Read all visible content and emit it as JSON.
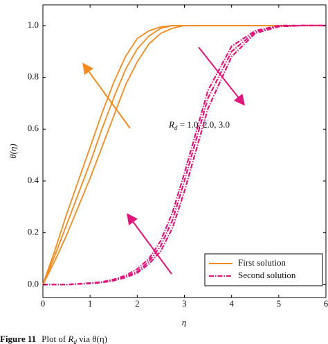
{
  "chart_data": {
    "type": "line",
    "x_label": "η",
    "y_label": "θ(η)",
    "x": [
      0,
      0.25,
      0.5,
      0.75,
      1,
      1.25,
      1.5,
      1.75,
      2,
      2.25,
      2.5,
      2.75,
      3,
      3.5,
      4,
      4.5,
      5,
      5.5,
      6
    ],
    "xlim": [
      0,
      6
    ],
    "ylim": [
      -0.05,
      1.08
    ],
    "xticks": [
      0,
      1,
      2,
      3,
      4,
      5,
      6
    ],
    "yticks": [
      {
        "value": 0,
        "label": "0.0"
      },
      {
        "value": 0.2,
        "label": "0.2"
      },
      {
        "value": 0.4,
        "label": "0.4"
      },
      {
        "value": 0.6,
        "label": "0.6"
      },
      {
        "value": 0.8,
        "label": "0.8"
      },
      {
        "value": 1,
        "label": "1.0"
      }
    ],
    "legend": "lower right",
    "series": [
      {
        "name": "First solution",
        "color": "#f28a1e",
        "style": "solid",
        "values": [
          0,
          0.13,
          0.27,
          0.4,
          0.53,
          0.66,
          0.78,
          0.88,
          0.95,
          0.98,
          0.995,
          1,
          1,
          1,
          1,
          1,
          1,
          1,
          1
        ]
      },
      {
        "name": "First solution",
        "color": "#f28a1e",
        "style": "solid",
        "values": [
          0,
          0.11,
          0.23,
          0.35,
          0.47,
          0.6,
          0.72,
          0.83,
          0.91,
          0.96,
          0.99,
          1,
          1,
          1,
          1,
          1,
          1,
          1,
          1
        ]
      },
      {
        "name": "First solution",
        "color": "#f28a1e",
        "style": "solid",
        "values": [
          0,
          0.09,
          0.19,
          0.3,
          0.41,
          0.53,
          0.65,
          0.77,
          0.86,
          0.93,
          0.97,
          0.99,
          1,
          1,
          1,
          1,
          1,
          1,
          1
        ]
      },
      {
        "name": "Second solution",
        "color": "#e0147a",
        "style": "dash-dot",
        "values": [
          0,
          0,
          0,
          0.003,
          0.006,
          0.01,
          0.02,
          0.035,
          0.06,
          0.1,
          0.17,
          0.28,
          0.43,
          0.75,
          0.92,
          0.98,
          1,
          1,
          1
        ]
      },
      {
        "name": "Second solution",
        "color": "#e0147a",
        "style": "dash-dot",
        "values": [
          0,
          0,
          0,
          0.002,
          0.005,
          0.009,
          0.017,
          0.03,
          0.05,
          0.09,
          0.15,
          0.25,
          0.4,
          0.72,
          0.9,
          0.975,
          0.998,
          1,
          1
        ]
      },
      {
        "name": "Second solution",
        "color": "#e0147a",
        "style": "dash-dot",
        "values": [
          0,
          0,
          0,
          0.002,
          0.004,
          0.008,
          0.015,
          0.027,
          0.045,
          0.08,
          0.13,
          0.22,
          0.36,
          0.68,
          0.88,
          0.97,
          0.996,
          1,
          1
        ]
      }
    ],
    "annotation": {
      "base": "R",
      "sub": "d",
      "rest": " = 1.0, 2.0, 3.0"
    },
    "caption": {
      "label": "Figure 11",
      "text": "Plot of ",
      "base": "R",
      "sub": "d",
      "tail": " via θ(η)"
    }
  }
}
